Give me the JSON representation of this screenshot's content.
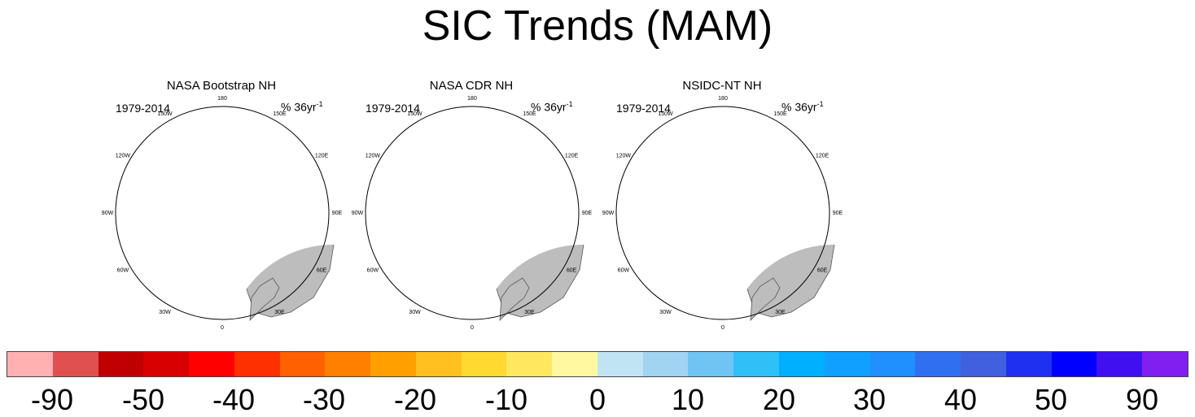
{
  "title": "SIC Trends (MAM)",
  "panels": [
    {
      "title": "NASA Bootstrap NH",
      "period": "1979-2014",
      "units_base": "% 36yr",
      "units_exp": "-1"
    },
    {
      "title": "NASA CDR NH",
      "period": "1979-2014",
      "units_base": "% 36yr",
      "units_exp": "-1"
    },
    {
      "title": "NSIDC-NT NH",
      "period": "1979-2014",
      "units_base": "% 36yr",
      "units_exp": "-1"
    }
  ],
  "longitude_labels": [
    "180",
    "150E",
    "120E",
    "90E",
    "60E",
    "30E",
    "0",
    "30W",
    "60W",
    "90W",
    "120W",
    "150W"
  ],
  "colorbar": {
    "colors": [
      "#ffb0b0",
      "#e05050",
      "#c00000",
      "#d80000",
      "#ff0000",
      "#ff3000",
      "#ff6000",
      "#ff8000",
      "#ffa000",
      "#ffc020",
      "#ffd830",
      "#ffe860",
      "#fff8a0",
      "#c0e4f4",
      "#a0d4f0",
      "#70c4f4",
      "#30c0f8",
      "#00b0ff",
      "#10a0ff",
      "#2090ff",
      "#3070f0",
      "#4060e0",
      "#2030f0",
      "#0000ff",
      "#4010f0",
      "#8020f0"
    ],
    "labels": [
      "-90",
      "-50",
      "-40",
      "-30",
      "-20",
      "-10",
      "0",
      "10",
      "20",
      "30",
      "40",
      "50",
      "90"
    ]
  },
  "colors": {
    "land": "#bdbdbd",
    "ocean": "#ffffff",
    "coast": "#555555"
  }
}
